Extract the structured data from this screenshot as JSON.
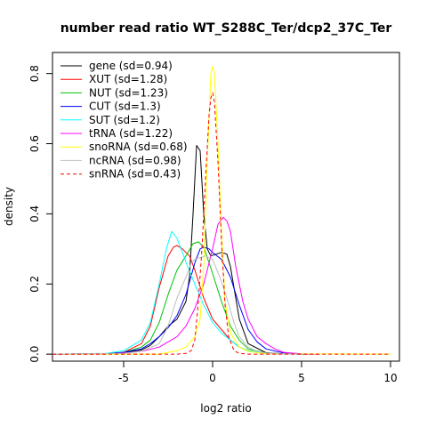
{
  "chart_data": {
    "type": "line",
    "title": "number read ratio WT_S288C_Ter/dcp2_37C_Ter",
    "xlabel": "log2 ratio",
    "ylabel": "density",
    "xlim": [
      -9,
      10.5
    ],
    "ylim": [
      -0.02,
      0.86
    ],
    "xticks": [
      -5,
      0,
      5,
      10
    ],
    "xtick_labels": [
      "-5",
      "0",
      "5",
      "10"
    ],
    "yticks": [
      0.0,
      0.2,
      0.4,
      0.6,
      0.8
    ],
    "ytick_labels": [
      "0.0",
      "0.2",
      "0.4",
      "0.6",
      "0.8"
    ],
    "grid": false,
    "legend_position": "top-left",
    "series": [
      {
        "name": "gene (sd=0.94)",
        "color": "#000000",
        "dashed": false,
        "x": [
          -9,
          -6,
          -5,
          -4,
          -3.5,
          -3,
          -2.5,
          -2,
          -1.5,
          -1.3,
          -1.1,
          -0.9,
          -0.7,
          -0.5,
          -0.3,
          -0.1,
          0.2,
          0.5,
          0.8,
          1,
          1.5,
          2,
          3,
          4,
          5,
          6
        ],
        "y": [
          0,
          0.001,
          0.004,
          0.012,
          0.025,
          0.05,
          0.08,
          0.1,
          0.15,
          0.22,
          0.4,
          0.595,
          0.58,
          0.4,
          0.3,
          0.28,
          0.285,
          0.29,
          0.285,
          0.25,
          0.1,
          0.03,
          0.004,
          0.001,
          0,
          0
        ]
      },
      {
        "name": "XUT (sd=1.28)",
        "color": "#ff0000",
        "dashed": false,
        "x": [
          -9,
          -6,
          -5,
          -4,
          -3.5,
          -3,
          -2.5,
          -2.2,
          -2,
          -1.7,
          -1.3,
          -1,
          -0.5,
          0,
          0.5,
          1,
          1.5,
          2,
          3,
          4,
          5
        ],
        "y": [
          0,
          0.001,
          0.005,
          0.03,
          0.08,
          0.19,
          0.28,
          0.305,
          0.31,
          0.3,
          0.28,
          0.24,
          0.16,
          0.1,
          0.07,
          0.04,
          0.02,
          0.01,
          0.002,
          0.0005,
          0
        ]
      },
      {
        "name": "NUT (sd=1.23)",
        "color": "#00c000",
        "dashed": false,
        "x": [
          -9,
          -6,
          -5,
          -4,
          -3.5,
          -3,
          -2.5,
          -2,
          -1.5,
          -1.1,
          -0.8,
          -0.5,
          0,
          0.5,
          1,
          1.5,
          2,
          3,
          4,
          5
        ],
        "y": [
          0,
          0.001,
          0.005,
          0.02,
          0.04,
          0.09,
          0.17,
          0.24,
          0.28,
          0.315,
          0.32,
          0.305,
          0.23,
          0.15,
          0.08,
          0.04,
          0.015,
          0.003,
          0.0005,
          0
        ]
      },
      {
        "name": "CUT (sd=1.3)",
        "color": "#0000ff",
        "dashed": false,
        "x": [
          -9,
          -6,
          -5,
          -4,
          -3.5,
          -3,
          -2.5,
          -2,
          -1.5,
          -1,
          -0.7,
          -0.5,
          -0.2,
          0,
          0.5,
          1,
          1.5,
          2,
          2.5,
          3,
          4,
          5
        ],
        "y": [
          0,
          0.001,
          0.005,
          0.015,
          0.03,
          0.05,
          0.075,
          0.11,
          0.17,
          0.26,
          0.3,
          0.305,
          0.3,
          0.29,
          0.27,
          0.22,
          0.14,
          0.07,
          0.035,
          0.015,
          0.003,
          0
        ]
      },
      {
        "name": "SUT (sd=1.2)",
        "color": "#00ffff",
        "dashed": false,
        "x": [
          -9,
          -6,
          -5,
          -4,
          -3.5,
          -3,
          -2.6,
          -2.3,
          -2,
          -1.7,
          -1.4,
          -1,
          -0.5,
          0,
          0.5,
          1,
          1.5,
          2,
          3,
          4,
          5
        ],
        "y": [
          0,
          0.002,
          0.01,
          0.04,
          0.09,
          0.2,
          0.3,
          0.35,
          0.33,
          0.29,
          0.25,
          0.2,
          0.14,
          0.09,
          0.06,
          0.04,
          0.02,
          0.01,
          0.002,
          0.0005,
          0
        ]
      },
      {
        "name": "tRNA (sd=1.22)",
        "color": "#ff00ff",
        "dashed": false,
        "x": [
          -9,
          -6,
          -5,
          -4,
          -3,
          -2,
          -1.5,
          -1,
          -0.5,
          0,
          0.3,
          0.6,
          0.8,
          1,
          1.3,
          1.7,
          2,
          2.5,
          3,
          3.5,
          4,
          5,
          6
        ],
        "y": [
          0,
          0,
          0.003,
          0.008,
          0.02,
          0.05,
          0.08,
          0.13,
          0.2,
          0.3,
          0.37,
          0.39,
          0.38,
          0.35,
          0.25,
          0.15,
          0.1,
          0.05,
          0.03,
          0.015,
          0.005,
          0.001,
          0
        ]
      },
      {
        "name": "snoRNA (sd=0.68)",
        "color": "#ffff00",
        "dashed": false,
        "x": [
          -9,
          -3,
          -2.5,
          -2,
          -1.5,
          -1,
          -0.7,
          -0.5,
          -0.3,
          -0.1,
          0,
          0.1,
          0.3,
          0.5,
          0.7,
          1,
          1.5,
          2,
          3,
          10
        ],
        "y": [
          0,
          0,
          0.005,
          0.01,
          0.02,
          0.05,
          0.1,
          0.25,
          0.55,
          0.8,
          0.82,
          0.8,
          0.6,
          0.35,
          0.15,
          0.06,
          0.02,
          0.008,
          0.001,
          0
        ]
      },
      {
        "name": "ncRNA (sd=0.98)",
        "color": "#bebebe",
        "dashed": false,
        "x": [
          -9,
          -5,
          -4,
          -3,
          -2.5,
          -2,
          -1.5,
          -1.2,
          -1,
          -0.7,
          -0.4,
          0,
          0.4,
          0.8,
          1.2,
          1.5,
          2,
          2.5,
          3,
          4,
          5
        ],
        "y": [
          0,
          0.002,
          0.008,
          0.03,
          0.08,
          0.16,
          0.22,
          0.26,
          0.27,
          0.275,
          0.28,
          0.27,
          0.22,
          0.16,
          0.09,
          0.05,
          0.02,
          0.008,
          0.003,
          0.001,
          0
        ]
      },
      {
        "name": "snRNA (sd=0.43)",
        "color": "#ff0000",
        "dashed": true,
        "x": [
          -9,
          -2,
          -1.5,
          -1.2,
          -1,
          -0.8,
          -0.6,
          -0.4,
          -0.2,
          -0.1,
          0,
          0.1,
          0.3,
          0.5,
          0.7,
          0.9,
          1.2,
          1.5,
          2,
          10
        ],
        "y": [
          0,
          0,
          0.002,
          0.01,
          0.04,
          0.15,
          0.3,
          0.5,
          0.68,
          0.73,
          0.745,
          0.72,
          0.55,
          0.32,
          0.14,
          0.05,
          0.01,
          0.002,
          0,
          0
        ]
      }
    ]
  }
}
